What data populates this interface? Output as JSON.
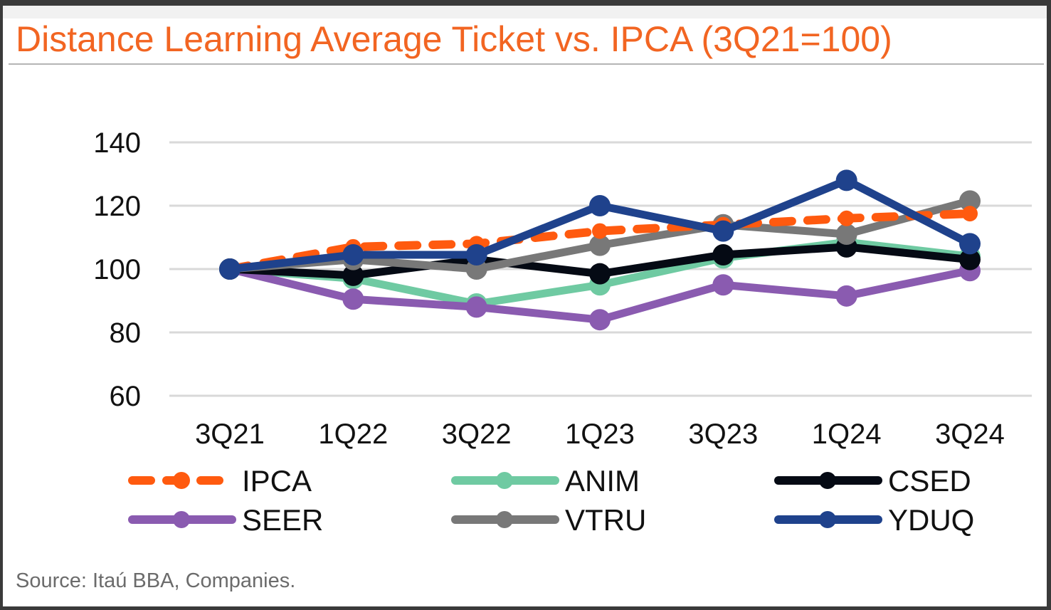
{
  "title": "Distance Learning Average Ticket vs. IPCA (3Q21=100)",
  "source": "Source: Itaú BBA, Companies.",
  "chart_data": {
    "type": "line",
    "title": "Distance Learning Average Ticket vs. IPCA (3Q21=100)",
    "xlabel": "",
    "ylabel": "",
    "categories": [
      "3Q21",
      "1Q22",
      "3Q22",
      "1Q23",
      "3Q23",
      "1Q24",
      "3Q24"
    ],
    "ylim": [
      60,
      140
    ],
    "yticks": [
      140,
      120,
      100,
      80,
      60
    ],
    "grid": true,
    "legend_position": "bottom",
    "series": [
      {
        "name": "IPCA",
        "color": "#ff5a0f",
        "dashed": true,
        "values": [
          100,
          107,
          108,
          112,
          114,
          116,
          117.5
        ]
      },
      {
        "name": "ANIM",
        "color": "#6fcaa2",
        "dashed": false,
        "values": [
          100,
          97,
          89,
          95,
          103.5,
          108.5,
          104
        ]
      },
      {
        "name": "CSED",
        "color": "#050a14",
        "dashed": false,
        "values": [
          100,
          98,
          103,
          98.5,
          104.5,
          107,
          103
        ]
      },
      {
        "name": "SEER",
        "color": "#8a5bb0",
        "dashed": false,
        "values": [
          100,
          90.5,
          88,
          84,
          95,
          91.5,
          99.5
        ]
      },
      {
        "name": "VTRU",
        "color": "#787878",
        "dashed": false,
        "values": [
          100,
          103,
          100,
          107.5,
          114,
          111,
          121.5
        ]
      },
      {
        "name": "YDUQ",
        "color": "#1f428c",
        "dashed": false,
        "values": [
          100,
          104.5,
          104.5,
          120,
          112,
          128,
          108
        ]
      }
    ]
  }
}
